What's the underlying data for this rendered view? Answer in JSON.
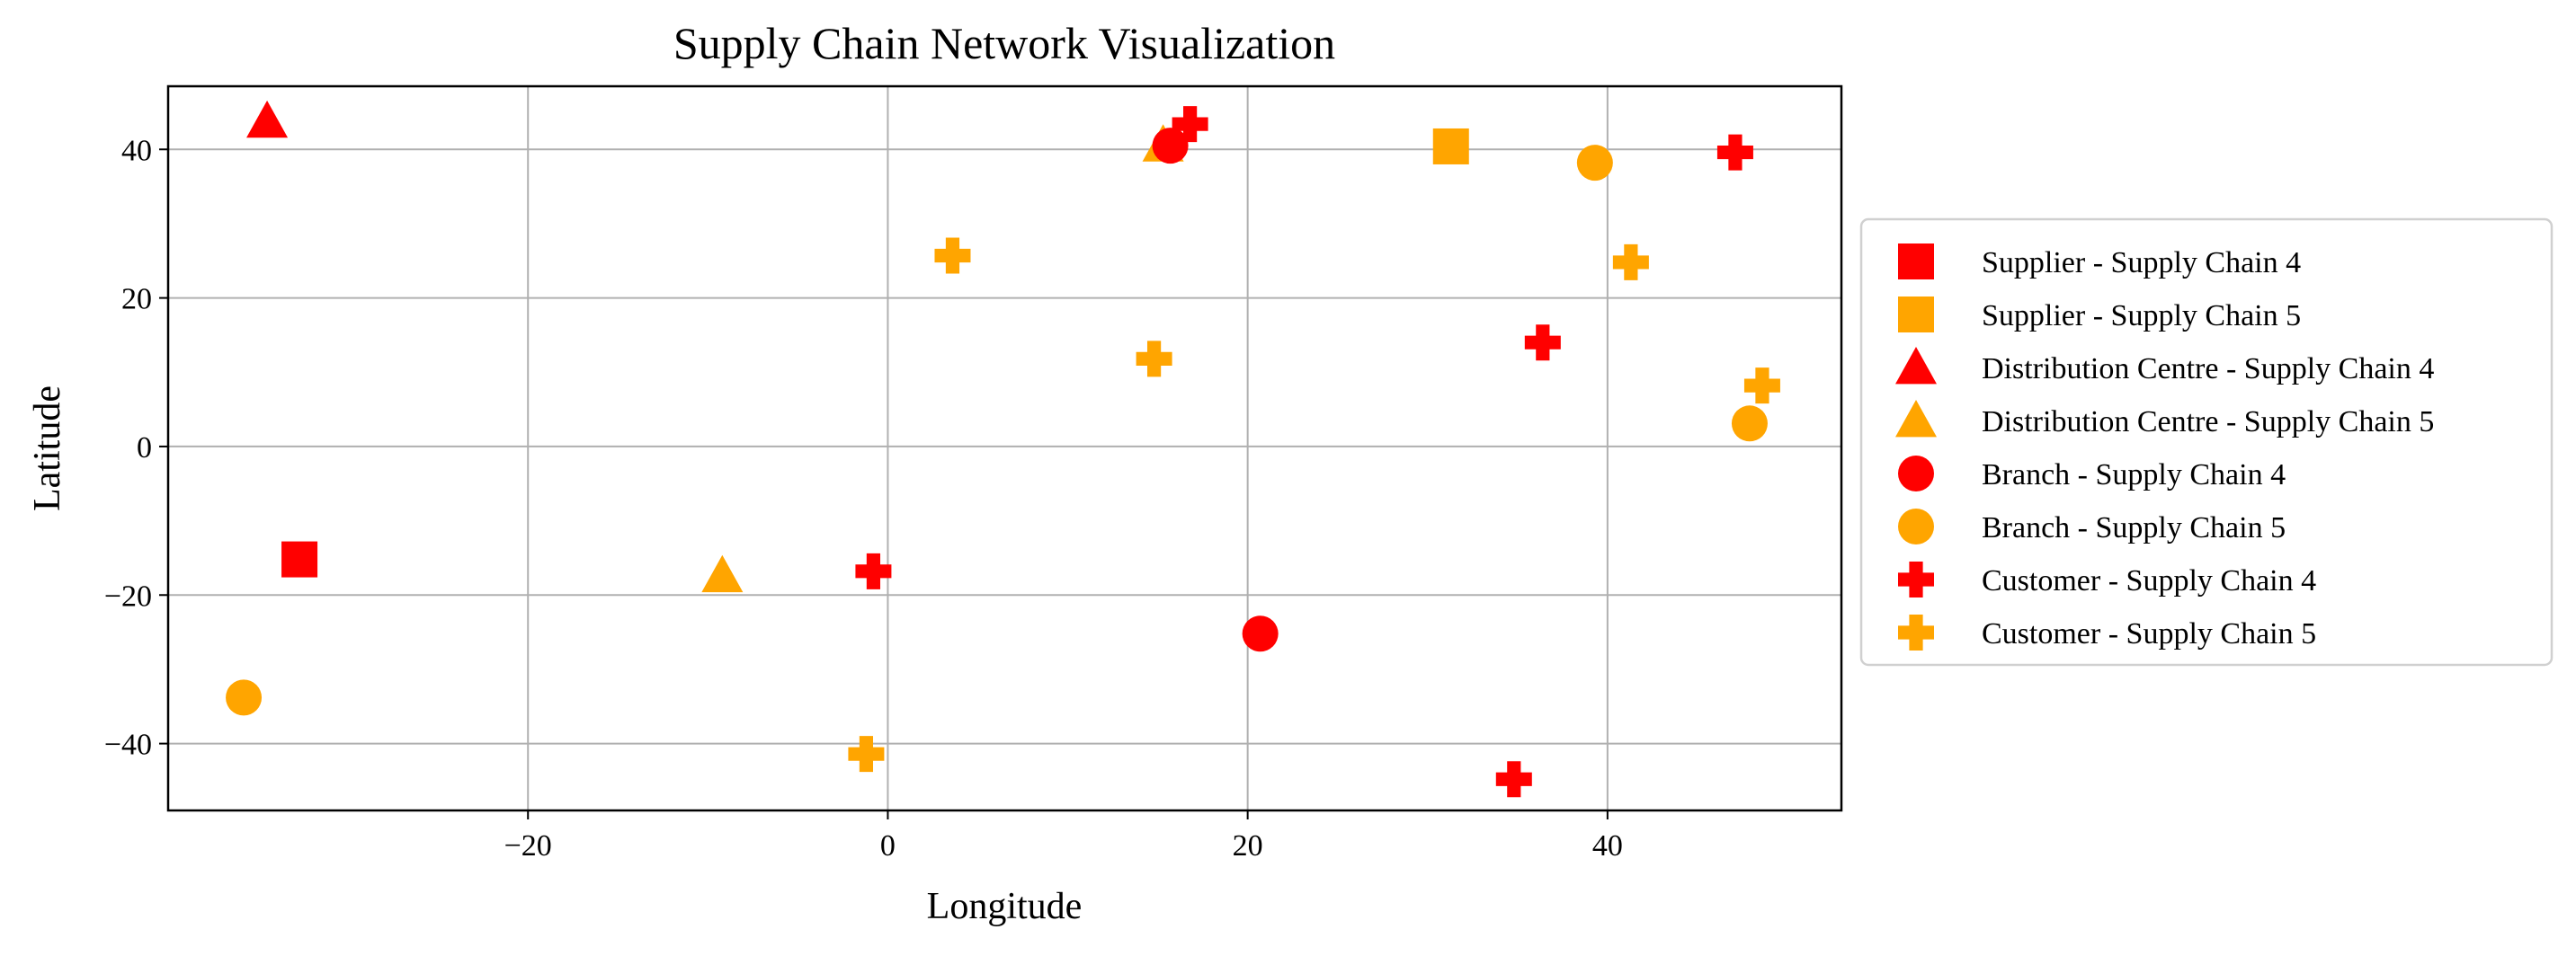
{
  "chart_data": {
    "type": "scatter",
    "title": "Supply Chain Network Visualization",
    "xlabel": "Longitude",
    "ylabel": "Latitude",
    "xlim": [
      -40,
      53
    ],
    "ylim": [
      -49,
      48.5
    ],
    "xticks": [
      -20,
      0,
      20,
      40
    ],
    "yticks": [
      -40,
      -20,
      0,
      20,
      40
    ],
    "xtick_labels": [
      "−20",
      "0",
      "20",
      "40"
    ],
    "ytick_labels": [
      "−40",
      "−20",
      "0",
      "20",
      "40"
    ],
    "grid": true,
    "legend_position": "outside-right",
    "colors": {
      "Supply Chain 4": "#ff0000",
      "Supply Chain 5": "#ffa500"
    },
    "series": [
      {
        "name": "Supplier - Supply Chain 4",
        "marker": "square",
        "color": "#ff0000",
        "points": [
          [
            -32.7,
            -15.2
          ]
        ]
      },
      {
        "name": "Supplier - Supply Chain 5",
        "marker": "square",
        "color": "#ffa500",
        "points": [
          [
            31.3,
            40.4
          ]
        ]
      },
      {
        "name": "Distribution Centre - Supply Chain 4",
        "marker": "triangle",
        "color": "#ff0000",
        "points": [
          [
            -34.5,
            43.8
          ]
        ]
      },
      {
        "name": "Distribution Centre - Supply Chain 5",
        "marker": "triangle",
        "color": "#ffa500",
        "points": [
          [
            -9.2,
            -17.4
          ],
          [
            15.3,
            40.6
          ]
        ]
      },
      {
        "name": "Branch - Supply Chain 4",
        "marker": "circle",
        "color": "#ff0000",
        "points": [
          [
            15.7,
            40.5
          ],
          [
            20.7,
            -25.2
          ]
        ]
      },
      {
        "name": "Branch - Supply Chain 5",
        "marker": "circle",
        "color": "#ffa500",
        "points": [
          [
            -35.8,
            -33.8
          ],
          [
            39.3,
            38.2
          ],
          [
            47.9,
            3.1
          ]
        ]
      },
      {
        "name": "Customer - Supply Chain 4",
        "marker": "plus",
        "color": "#ff0000",
        "points": [
          [
            -0.8,
            -16.8
          ],
          [
            16.8,
            43.4
          ],
          [
            36.4,
            14.0
          ],
          [
            47.1,
            39.6
          ],
          [
            34.8,
            -44.8
          ]
        ]
      },
      {
        "name": "Customer - Supply Chain 5",
        "marker": "plus",
        "color": "#ffa500",
        "points": [
          [
            3.6,
            25.7
          ],
          [
            14.8,
            11.8
          ],
          [
            41.3,
            24.8
          ],
          [
            48.6,
            8.2
          ],
          [
            -1.2,
            -41.4
          ]
        ]
      }
    ]
  }
}
